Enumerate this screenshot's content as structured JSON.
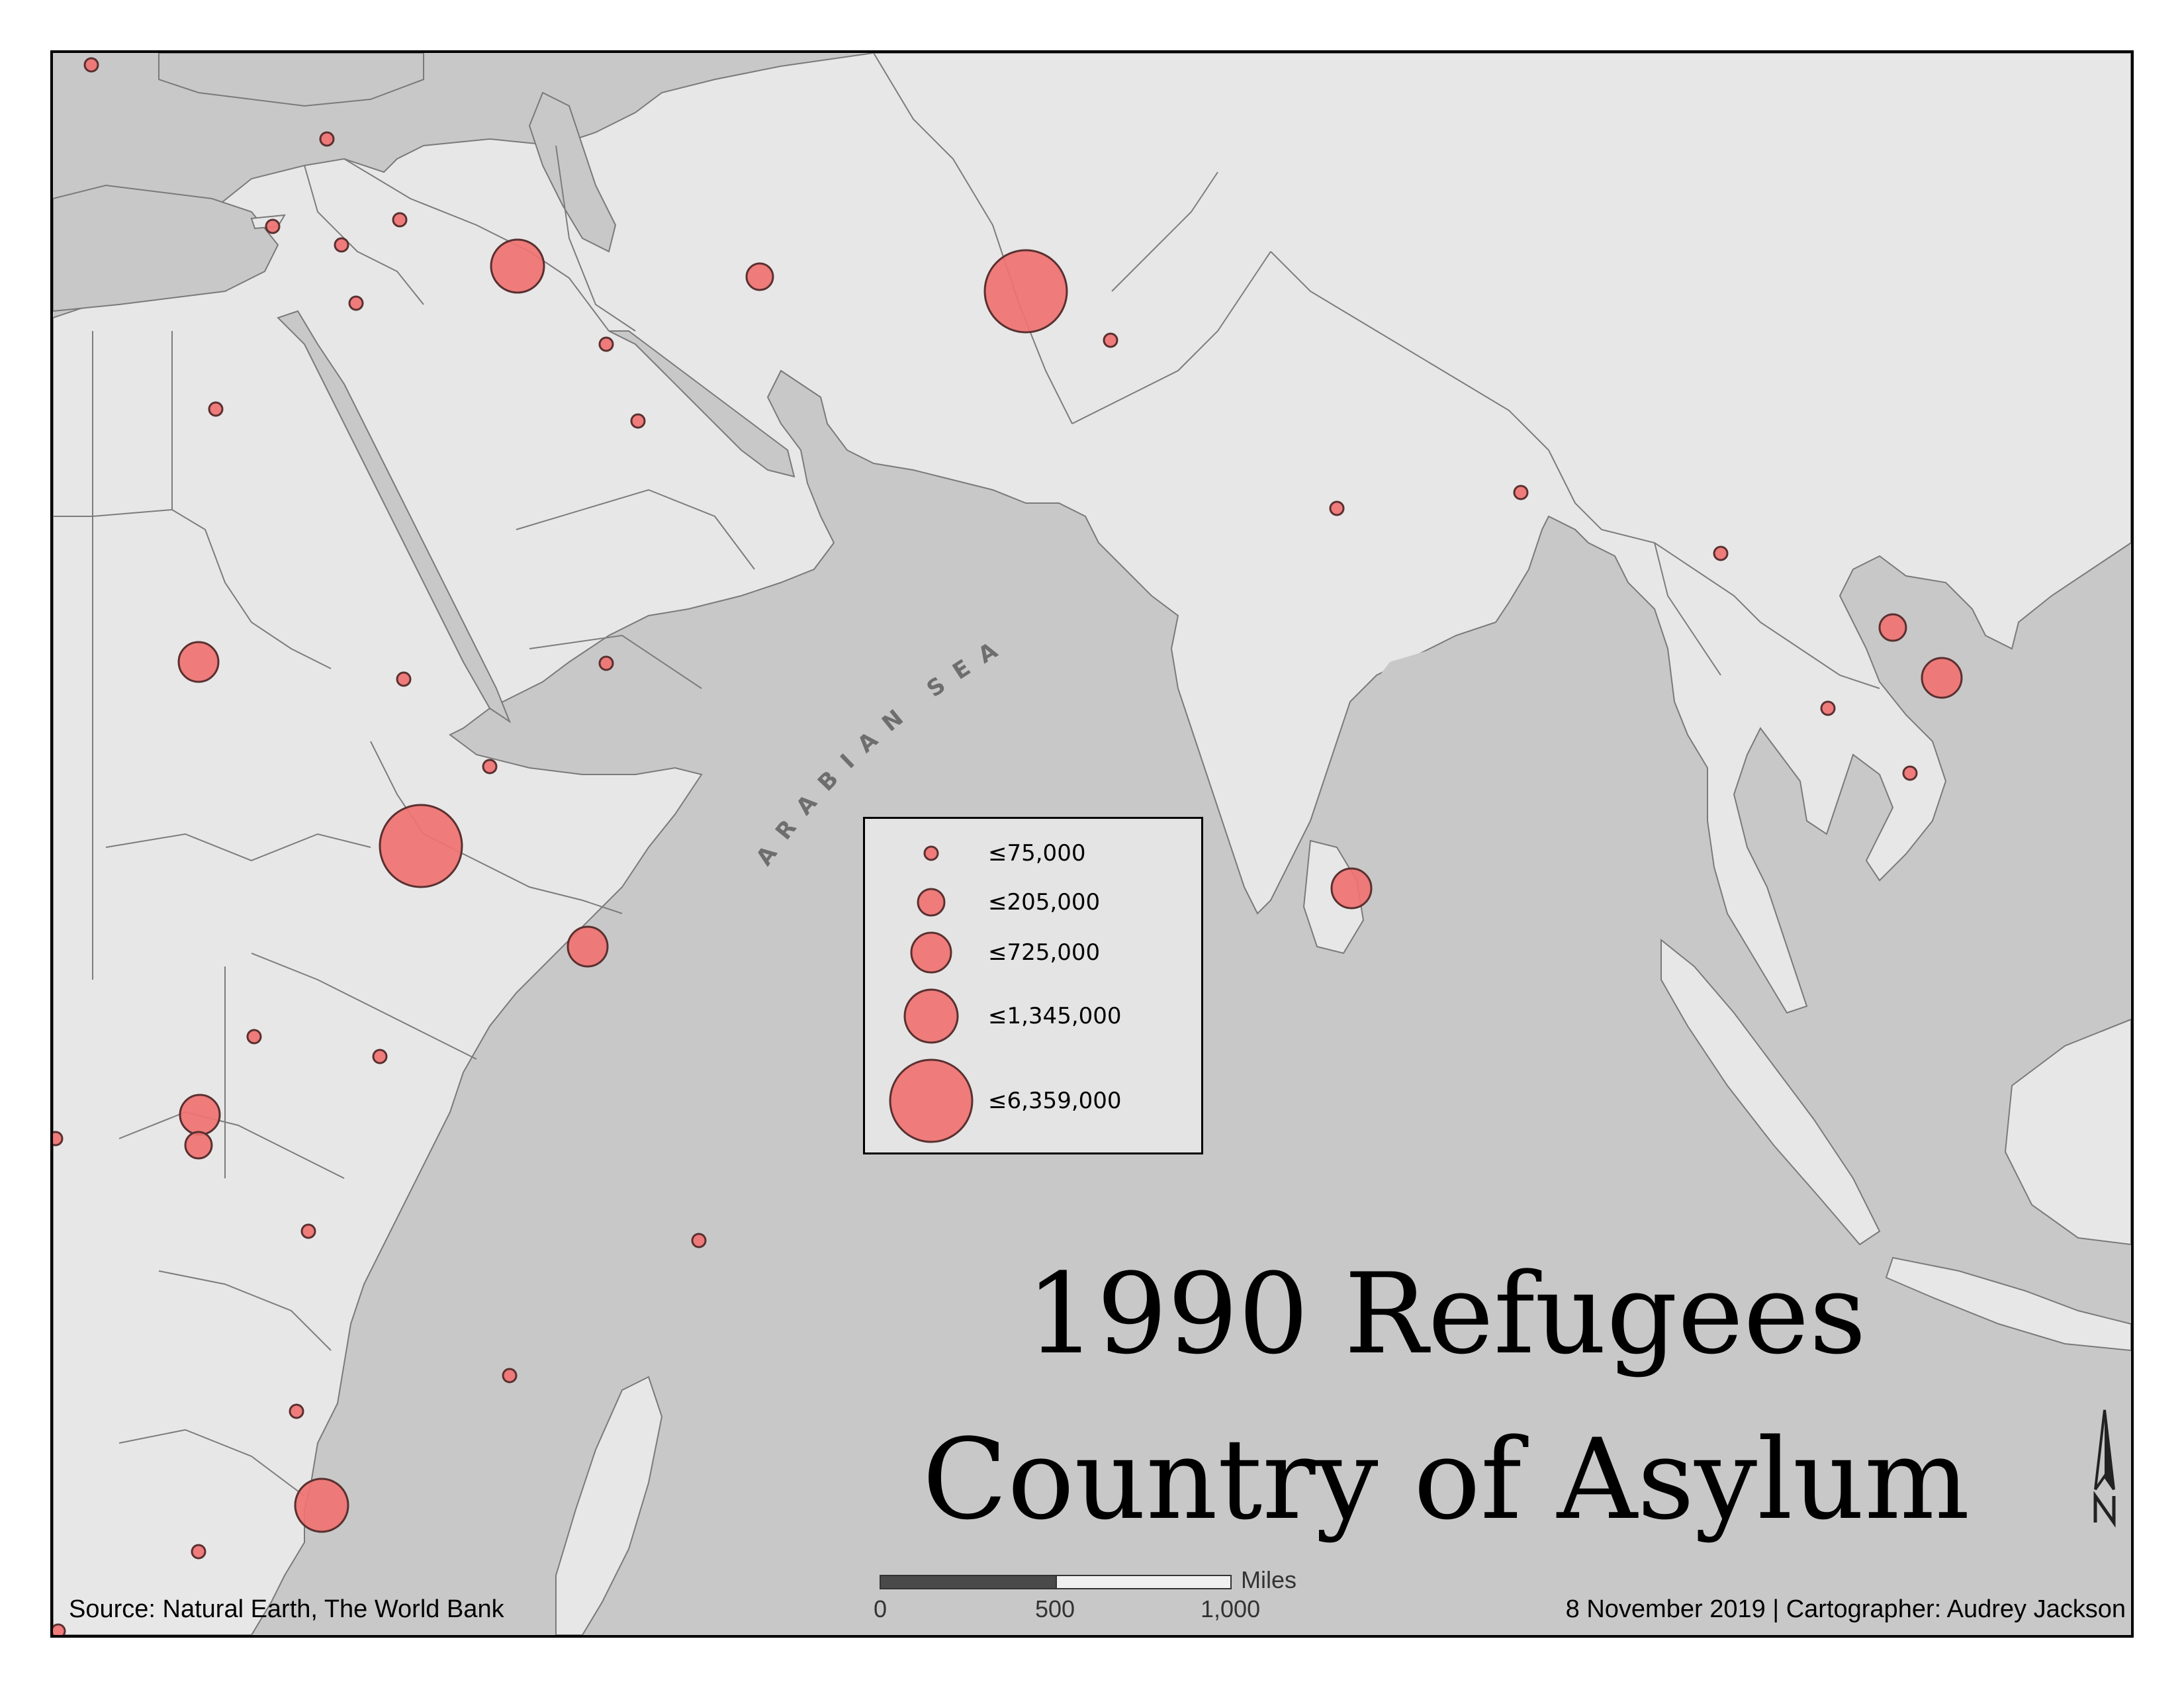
{
  "title": {
    "line1": "1990 Refugees",
    "line2": "Country of Asylum"
  },
  "sea_label": "ARABIAN SEA",
  "legend": {
    "classes": [
      {
        "label": "≤75,000",
        "max": 75000
      },
      {
        "label": "≤205,000",
        "max": 205000
      },
      {
        "label": "≤725,000",
        "max": 725000
      },
      {
        "label": "≤1,345,000",
        "max": 1345000
      },
      {
        "label": "≤6,359,000",
        "max": 6359000
      }
    ]
  },
  "scale_bar": {
    "unit": "Miles",
    "ticks": [
      "0",
      "500",
      "1,000"
    ]
  },
  "source": "Source: Natural Earth, The World Bank",
  "credit": "8 November 2019 | Cartographer: Audrey Jackson",
  "colors": {
    "sea": "#c8c8c8",
    "land": "#e7e7e7",
    "symbol_fill": "#f07272",
    "symbol_stroke": "#5a3030"
  },
  "north_arrow": "north-arrow-icon"
}
